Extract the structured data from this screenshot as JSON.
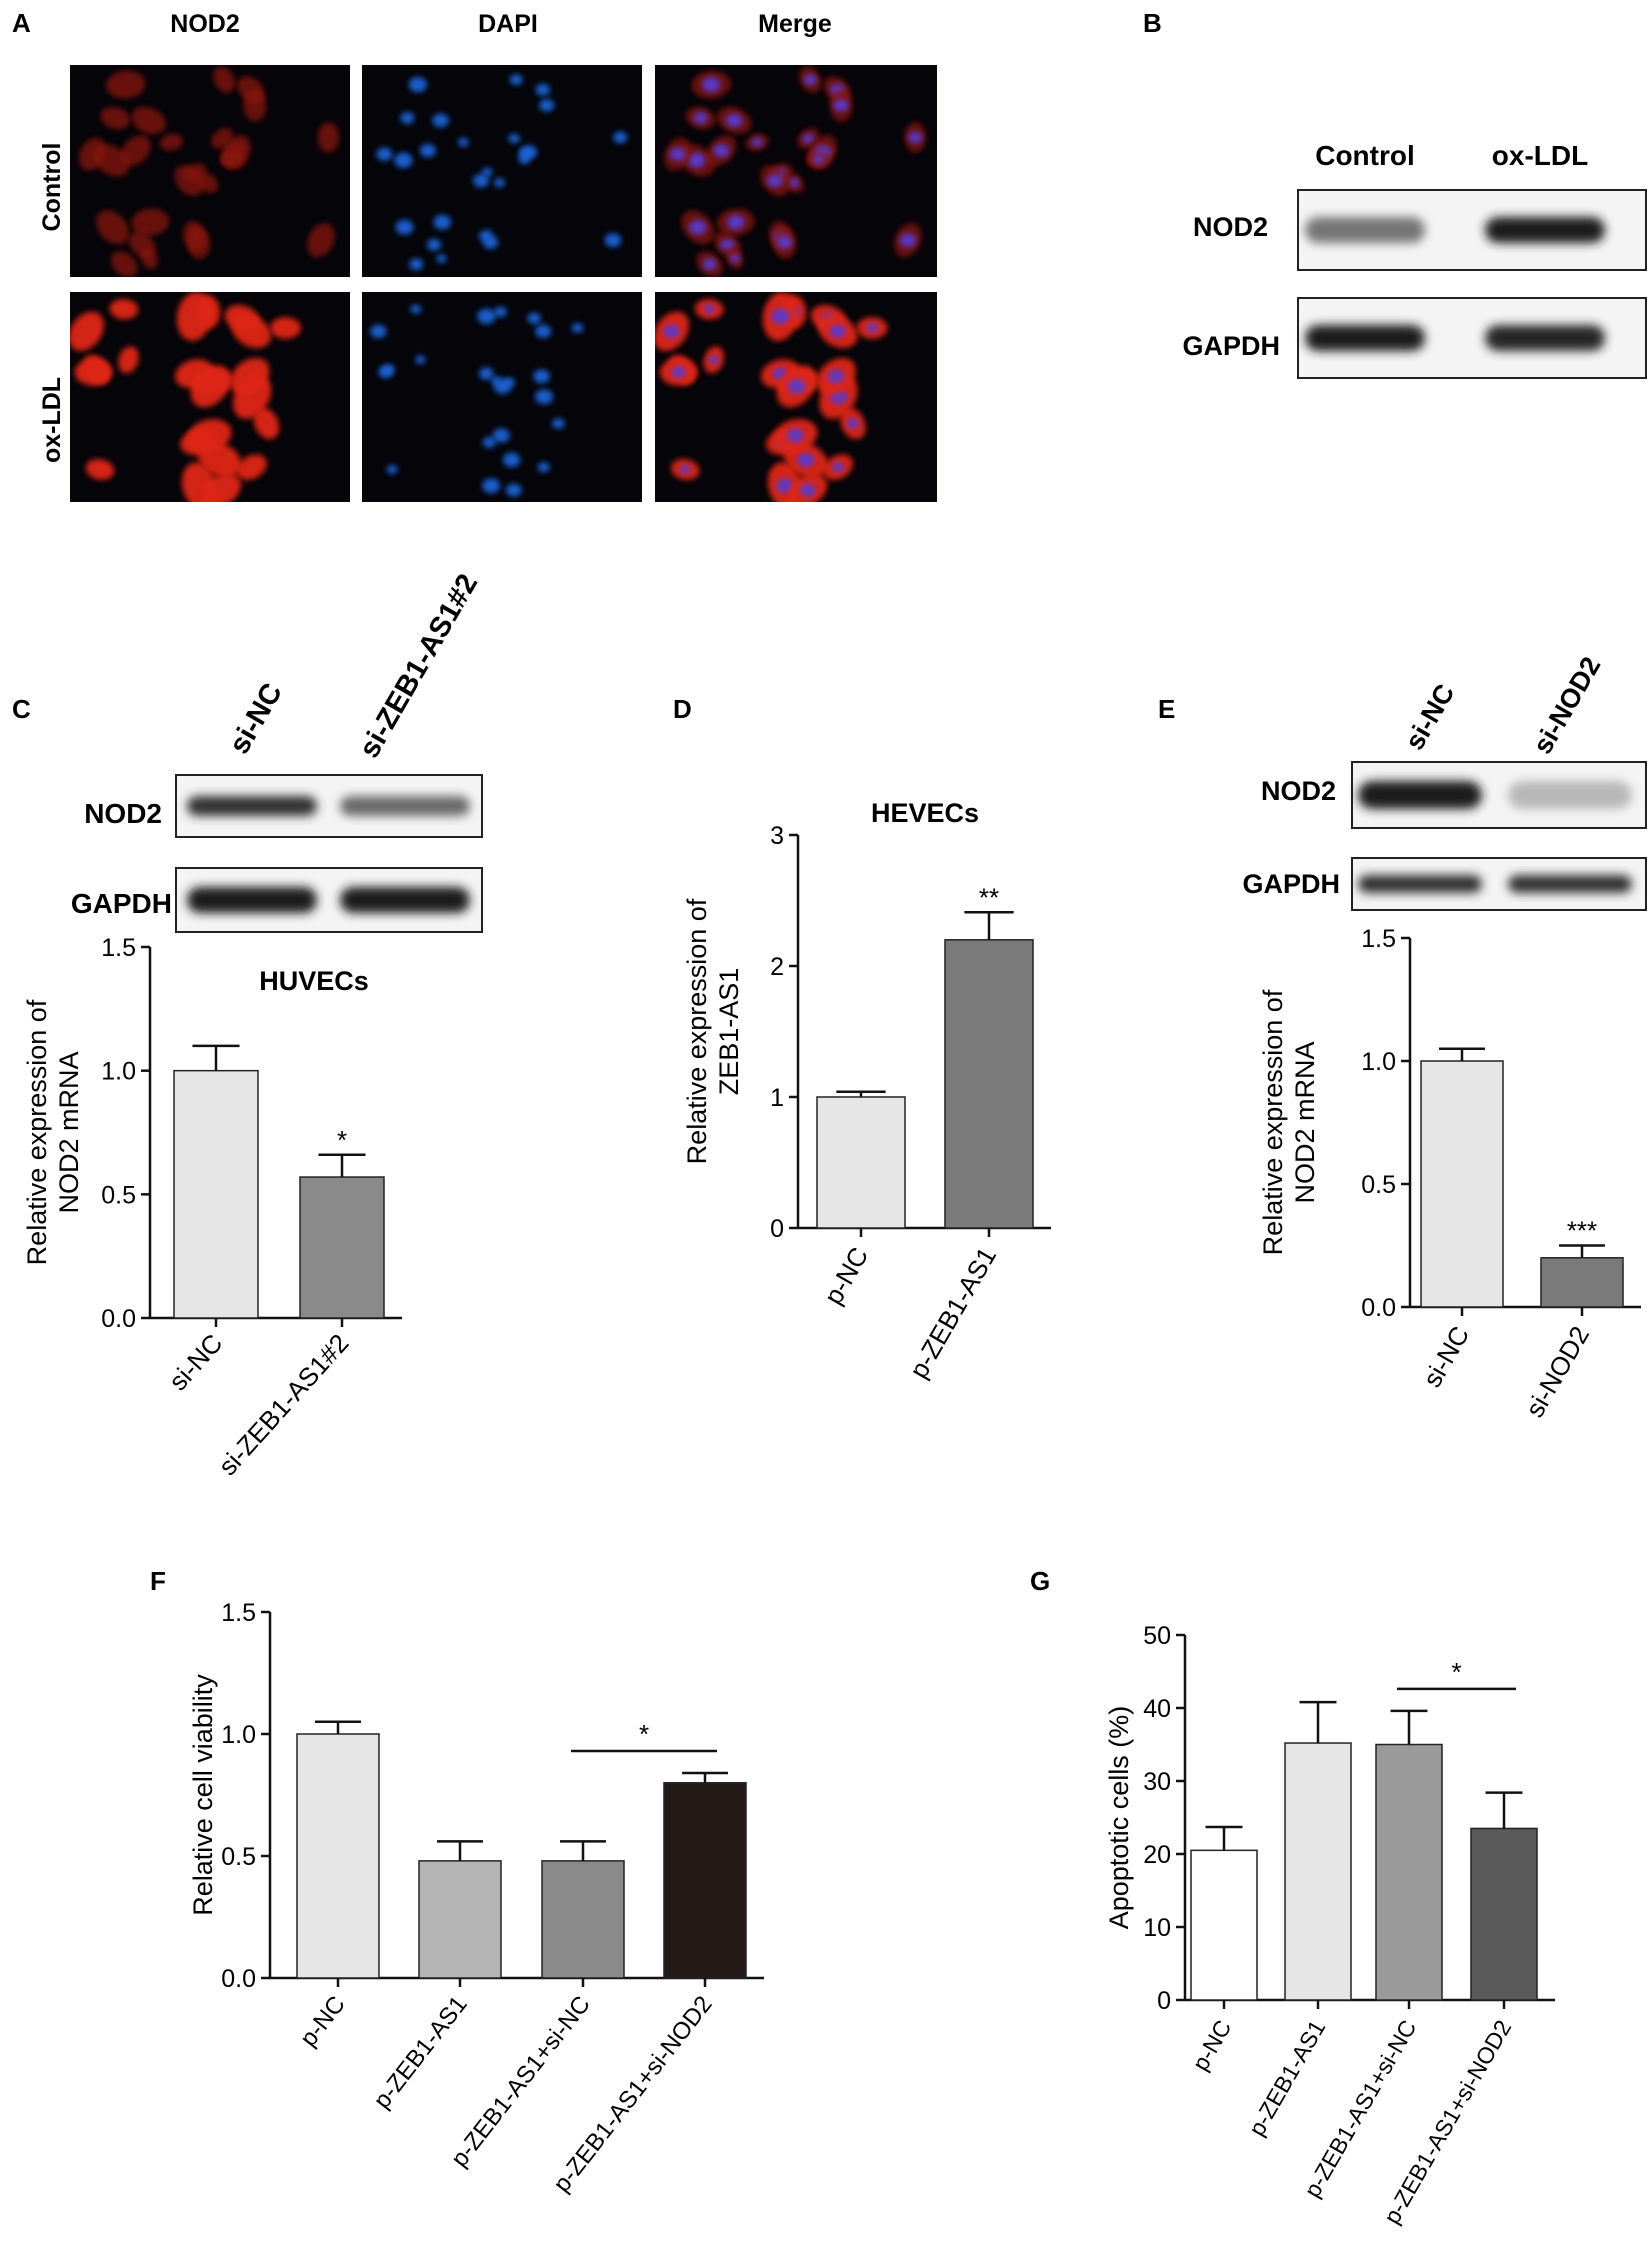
{
  "panel_letters": [
    "A",
    "B",
    "C",
    "D",
    "E",
    "F",
    "G"
  ],
  "panel_A": {
    "column_labels": [
      "NOD2",
      "DAPI",
      "Merge"
    ],
    "row_labels": [
      "Control",
      "ox-LDL"
    ]
  },
  "panel_B": {
    "lane_labels": [
      "Control",
      "ox-LDL"
    ],
    "band_labels": [
      "NOD2",
      "GAPDH"
    ],
    "band_intensity": {
      "NOD2": [
        0.55,
        0.95
      ],
      "GAPDH": [
        0.95,
        0.9
      ]
    }
  },
  "panel_C_blot": {
    "lane_labels": [
      "si-NC",
      "si-ZEB1-AS1#2"
    ],
    "band_labels": [
      "NOD2",
      "GAPDH"
    ],
    "band_intensity": {
      "NOD2": [
        0.85,
        0.6
      ],
      "GAPDH": [
        0.95,
        0.95
      ]
    }
  },
  "panel_E_blot": {
    "lane_labels": [
      "si-NC",
      "si-NOD2"
    ],
    "band_labels": [
      "NOD2",
      "GAPDH"
    ],
    "band_intensity": {
      "NOD2": [
        0.95,
        0.25
      ],
      "GAPDH": [
        0.85,
        0.85
      ]
    }
  },
  "chart_data": [
    {
      "id": "C",
      "type": "bar",
      "title": "HUVECs",
      "ylabel_lines": [
        "Relative expression of",
        "NOD2 mRNA"
      ],
      "categories": [
        "si-NC",
        "si-ZEB1-AS1#2"
      ],
      "values": [
        1.0,
        0.57
      ],
      "errors": [
        0.1,
        0.09
      ],
      "significance": [
        "",
        "*"
      ],
      "colors": [
        "#e6e6e6",
        "#8a8a8a"
      ],
      "ylim": [
        0,
        1.5
      ],
      "yticks": [
        "0.0",
        "0.5",
        "1.0",
        "1.5"
      ],
      "ytick_values": [
        0,
        0.5,
        1.0,
        1.5
      ]
    },
    {
      "id": "D",
      "type": "bar",
      "title": "HEVECs",
      "ylabel_lines": [
        "Relative expression of",
        "ZEB1-AS1"
      ],
      "categories": [
        "p-NC",
        "p-ZEB1-AS1"
      ],
      "values": [
        1.0,
        2.2
      ],
      "errors": [
        0.04,
        0.21
      ],
      "significance": [
        "",
        "**"
      ],
      "colors": [
        "#e6e6e6",
        "#7a7a7a"
      ],
      "ylim": [
        0,
        3
      ],
      "yticks": [
        "0",
        "1",
        "2",
        "3"
      ],
      "ytick_values": [
        0,
        1,
        2,
        3
      ]
    },
    {
      "id": "E",
      "type": "bar",
      "title": "",
      "ylabel_lines": [
        "Relative expression of",
        "NOD2 mRNA"
      ],
      "categories": [
        "si-NC",
        "si-NOD2"
      ],
      "values": [
        1.0,
        0.2
      ],
      "errors": [
        0.05,
        0.05
      ],
      "significance": [
        "",
        "***"
      ],
      "colors": [
        "#e6e6e6",
        "#7a7a7a"
      ],
      "ylim": [
        0,
        1.5
      ],
      "yticks": [
        "0.0",
        "0.5",
        "1.0",
        "1.5"
      ],
      "ytick_values": [
        0,
        0.5,
        1.0,
        1.5
      ]
    },
    {
      "id": "F",
      "type": "bar",
      "title": "",
      "ylabel_lines": [
        "Relative cell viability"
      ],
      "categories": [
        "p-NC",
        "p-ZEB1-AS1",
        "p-ZEB1-AS1+si-NC",
        "p-ZEB1-AS1+si-NOD2"
      ],
      "values": [
        1.0,
        0.48,
        0.48,
        0.8
      ],
      "errors": [
        0.05,
        0.08,
        0.08,
        0.04
      ],
      "colors": [
        "#e6e6e6",
        "#b4b4b4",
        "#8a8a8a",
        "#231a18"
      ],
      "bracket": {
        "from": 2,
        "to": 3,
        "label": "*"
      },
      "ylim": [
        0,
        1.5
      ],
      "yticks": [
        "0.0",
        "0.5",
        "1.0",
        "1.5"
      ],
      "ytick_values": [
        0,
        0.5,
        1.0,
        1.5
      ]
    },
    {
      "id": "G",
      "type": "bar",
      "title": "",
      "ylabel_lines": [
        "Apoptotic cells  (%)"
      ],
      "categories": [
        "p-NC",
        "p-ZEB1-AS1",
        "p-ZEB1-AS1+si-NC",
        "p-ZEB1-AS1+si-NOD2"
      ],
      "values": [
        20.5,
        35.2,
        35.0,
        23.5
      ],
      "errors": [
        3.2,
        5.6,
        4.6,
        4.9
      ],
      "colors": [
        "#ffffff",
        "#e6e6e6",
        "#9a9a9a",
        "#5a5a5a"
      ],
      "bracket": {
        "from": 2,
        "to": 3,
        "label": "*"
      },
      "ylim": [
        0,
        50
      ],
      "yticks": [
        "0",
        "10",
        "20",
        "30",
        "40",
        "50"
      ],
      "ytick_values": [
        0,
        10,
        20,
        30,
        40,
        50
      ]
    }
  ]
}
